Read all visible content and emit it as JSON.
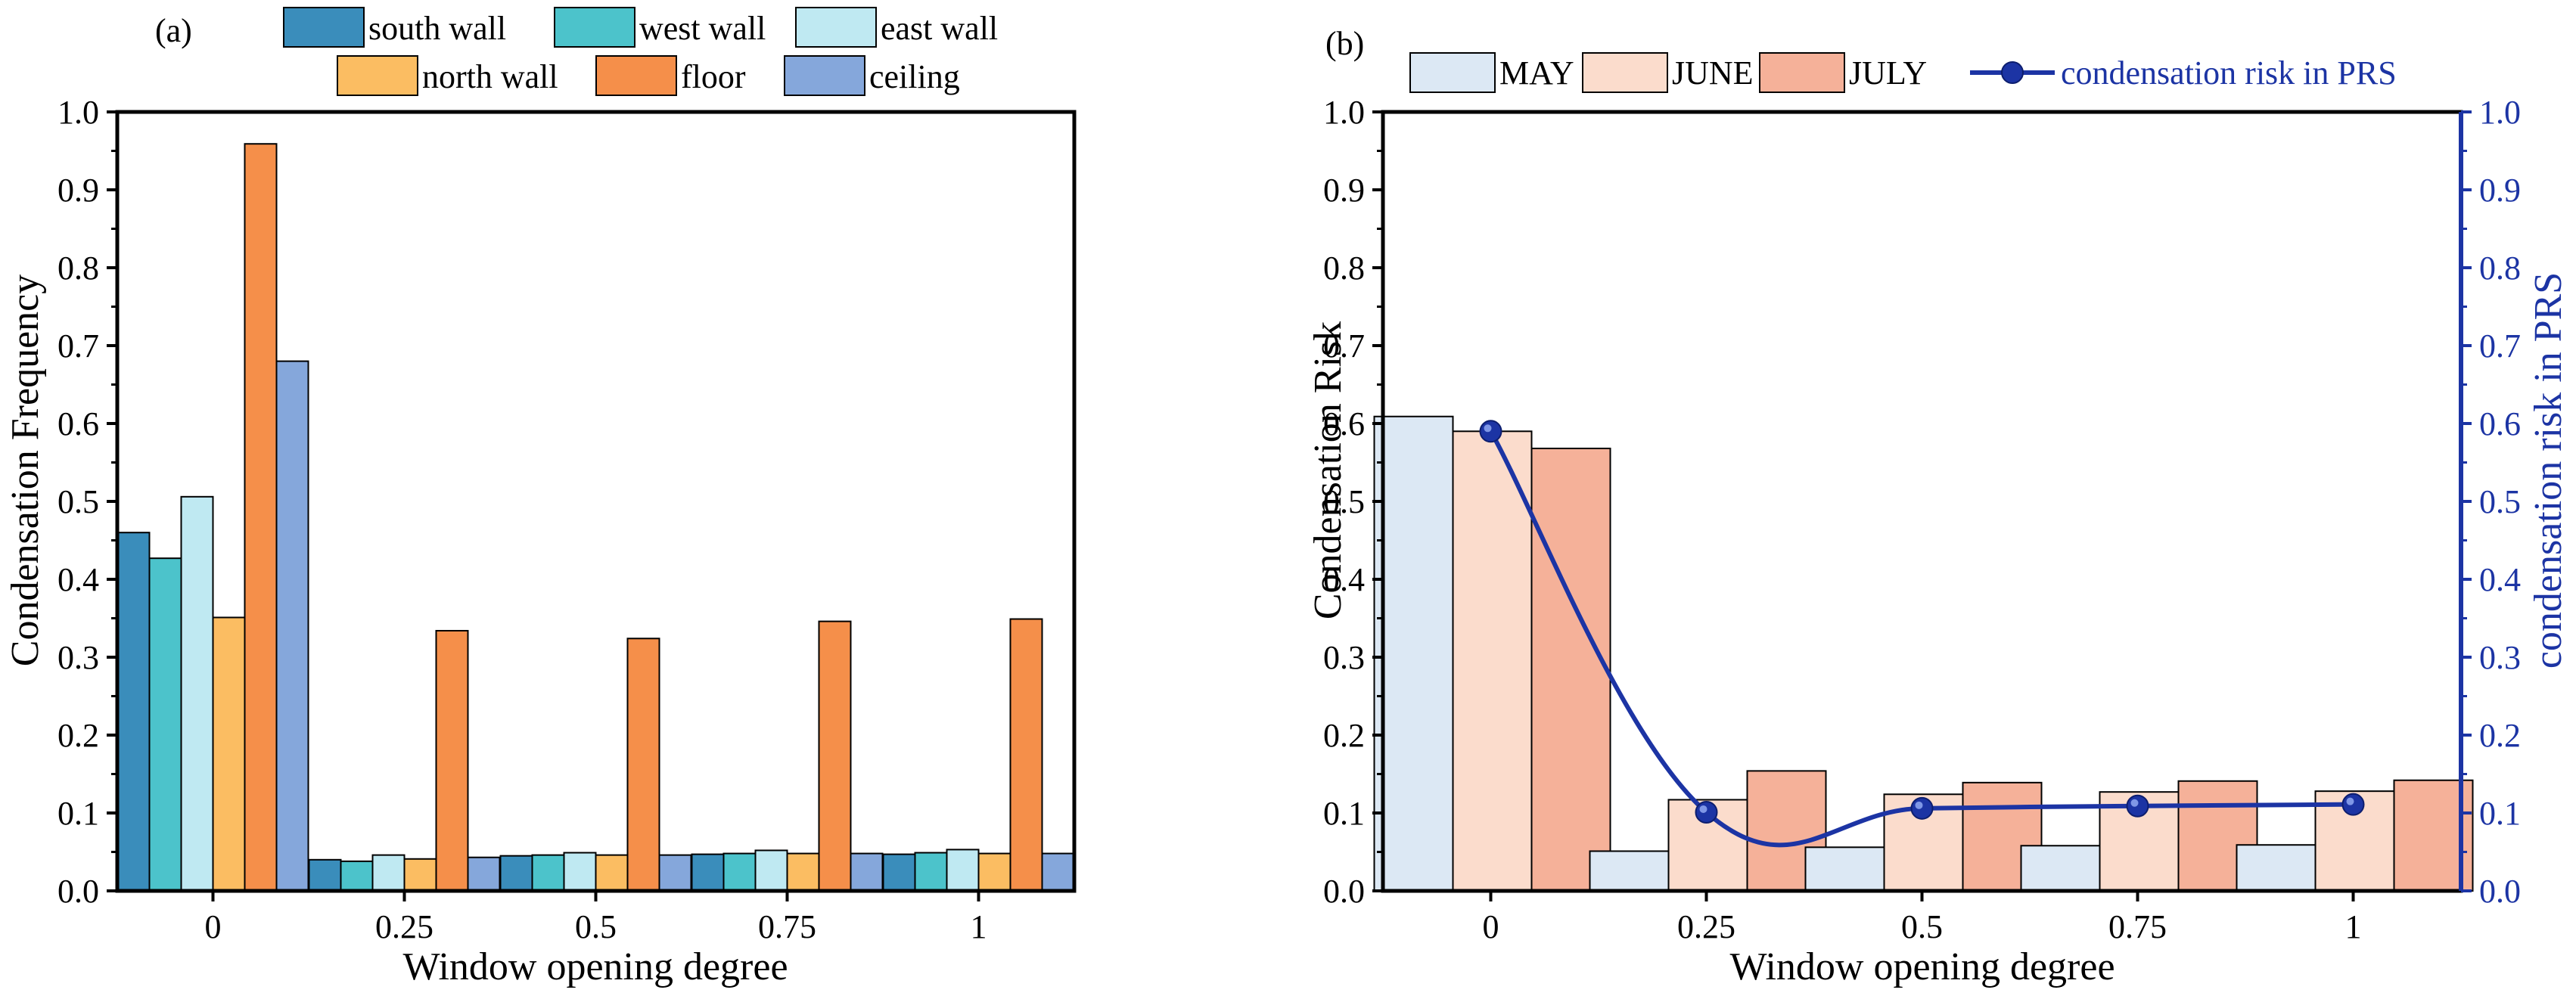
{
  "colors": {
    "south_wall": "#3a8dbb",
    "west_wall": "#4cc3cb",
    "east_wall": "#bfe9f2",
    "north_wall": "#fbbd62",
    "floor": "#f58f4a",
    "ceiling": "#85a7db",
    "may": "#dce8f4",
    "june": "#fbdccc",
    "july": "#f5b199",
    "prs_line": "#1c34a4",
    "axis": "#000000"
  },
  "chart_data": [
    {
      "panel_label": "(a)",
      "type": "bar",
      "xlabel": "Window opening degree",
      "ylabel": "Condensation Frequency",
      "categories": [
        "0",
        "0.25",
        "0.5",
        "0.75",
        "1"
      ],
      "ylim": [
        0.0,
        1.0
      ],
      "yticks": [
        "0.0",
        "0.1",
        "0.2",
        "0.3",
        "0.4",
        "0.5",
        "0.6",
        "0.7",
        "0.8",
        "0.9",
        "1.0"
      ],
      "grid": false,
      "legend_position": "top",
      "series": [
        {
          "name": "south wall",
          "color_key": "south_wall",
          "values": [
            0.46,
            0.04,
            0.045,
            0.047,
            0.047
          ]
        },
        {
          "name": "west wall",
          "color_key": "west_wall",
          "values": [
            0.427,
            0.038,
            0.046,
            0.048,
            0.049
          ]
        },
        {
          "name": "east wall",
          "color_key": "east_wall",
          "values": [
            0.506,
            0.046,
            0.049,
            0.052,
            0.053
          ]
        },
        {
          "name": "north wall",
          "color_key": "north_wall",
          "values": [
            0.351,
            0.041,
            0.046,
            0.048,
            0.048
          ]
        },
        {
          "name": "floor",
          "color_key": "floor",
          "values": [
            0.959,
            0.334,
            0.324,
            0.346,
            0.349
          ]
        },
        {
          "name": "ceiling",
          "color_key": "ceiling",
          "values": [
            0.68,
            0.043,
            0.046,
            0.048,
            0.048
          ]
        }
      ]
    },
    {
      "panel_label": "(b)",
      "type": "bar",
      "xlabel": "Window opening degree",
      "ylabel": "Condensation Risk",
      "ylabel_right": "condensation risk in PRS",
      "categories": [
        "0",
        "0.25",
        "0.5",
        "0.75",
        "1"
      ],
      "ylim": [
        0.0,
        1.0
      ],
      "ylim_right": [
        0.0,
        1.0
      ],
      "yticks": [
        "0.0",
        "0.1",
        "0.2",
        "0.3",
        "0.4",
        "0.5",
        "0.6",
        "0.7",
        "0.8",
        "0.9",
        "1.0"
      ],
      "grid": false,
      "legend_position": "top",
      "series": [
        {
          "name": "MAY",
          "color_key": "may",
          "values": [
            0.609,
            0.051,
            0.056,
            0.058,
            0.059
          ]
        },
        {
          "name": "JUNE",
          "color_key": "june",
          "values": [
            0.59,
            0.117,
            0.124,
            0.127,
            0.128
          ]
        },
        {
          "name": "JULY",
          "color_key": "july",
          "values": [
            0.568,
            0.154,
            0.139,
            0.141,
            0.142
          ]
        }
      ],
      "line_series": {
        "name": "condensation risk in PRS",
        "type": "line",
        "axis": "right",
        "color_key": "prs_line",
        "x": [
          "0",
          "0.25",
          "0.5",
          "0.75",
          "1"
        ],
        "values": [
          0.59,
          0.101,
          0.106,
          0.109,
          0.111
        ]
      }
    }
  ]
}
